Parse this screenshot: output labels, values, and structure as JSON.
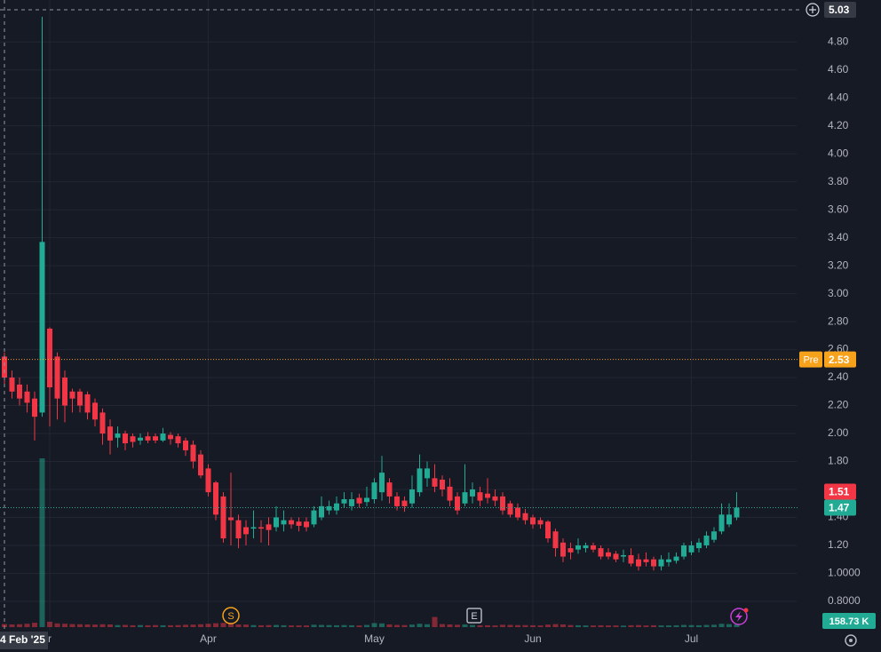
{
  "chart_data": {
    "type": "candlestick",
    "categories": [
      "4 Feb '25",
      null,
      null,
      null,
      null,
      null,
      "r",
      null,
      null,
      null,
      null,
      null,
      null,
      null,
      null,
      null,
      null,
      null,
      null,
      null,
      null,
      null,
      null,
      null,
      null,
      null,
      null,
      "Apr",
      null,
      null,
      null,
      null,
      null,
      null,
      null,
      null,
      null,
      null,
      null,
      null,
      null,
      null,
      null,
      null,
      null,
      null,
      null,
      null,
      null,
      "May",
      null,
      null,
      null,
      null,
      null,
      null,
      null,
      null,
      null,
      null,
      null,
      null,
      null,
      null,
      null,
      null,
      null,
      null,
      null,
      null,
      "Jun",
      null,
      null,
      null,
      null,
      null,
      null,
      null,
      null,
      null,
      null,
      null,
      null,
      null,
      null,
      null,
      null,
      null,
      null,
      null,
      null,
      "Jul",
      null,
      null,
      null,
      null,
      null,
      null
    ],
    "open": [
      2.55,
      2.4,
      2.35,
      2.3,
      2.25,
      2.15,
      2.75,
      2.55,
      2.4,
      2.3,
      2.3,
      2.28,
      2.22,
      2.15,
      2.05,
      1.97,
      2.0,
      1.98,
      1.95,
      1.98,
      1.98,
      1.95,
      1.99,
      1.98,
      1.95,
      1.92,
      1.85,
      1.75,
      1.65,
      1.55,
      1.4,
      1.38,
      1.33,
      1.32,
      1.33,
      1.35,
      1.33,
      1.35,
      1.38,
      1.37,
      1.37,
      1.35,
      1.4,
      1.45,
      1.45,
      1.5,
      1.48,
      1.54,
      1.51,
      1.53,
      1.58,
      1.65,
      1.55,
      1.52,
      1.5,
      1.58,
      1.68,
      1.68,
      1.67,
      1.62,
      1.55,
      1.5,
      1.55,
      1.58,
      1.57,
      1.55,
      1.55,
      1.5,
      1.47,
      1.43,
      1.4,
      1.38,
      1.37,
      1.3,
      1.22,
      1.18,
      1.17,
      1.18,
      1.2,
      1.18,
      1.15,
      1.14,
      1.12,
      1.13,
      1.1,
      1.1,
      1.1,
      1.05,
      1.08,
      1.09,
      1.12,
      1.15,
      1.18,
      1.2,
      1.24,
      1.3,
      1.35,
      1.4
    ],
    "high": [
      2.58,
      2.45,
      2.4,
      2.35,
      2.3,
      4.98,
      2.76,
      2.58,
      2.45,
      2.32,
      2.32,
      2.3,
      2.25,
      2.18,
      2.1,
      2.05,
      2.02,
      2.0,
      2.0,
      2.01,
      2.0,
      2.04,
      2.01,
      2.0,
      1.97,
      1.95,
      1.88,
      1.78,
      1.66,
      1.58,
      1.72,
      1.42,
      1.38,
      1.45,
      1.38,
      1.4,
      1.48,
      1.45,
      1.4,
      1.4,
      1.4,
      1.48,
      1.55,
      1.52,
      1.55,
      1.58,
      1.58,
      1.57,
      1.62,
      1.68,
      1.84,
      1.68,
      1.58,
      1.55,
      1.7,
      1.85,
      1.8,
      1.78,
      1.7,
      1.68,
      1.58,
      1.78,
      1.65,
      1.62,
      1.68,
      1.6,
      1.58,
      1.52,
      1.5,
      1.46,
      1.42,
      1.4,
      1.38,
      1.32,
      1.25,
      1.22,
      1.25,
      1.22,
      1.22,
      1.2,
      1.18,
      1.16,
      1.17,
      1.18,
      1.14,
      1.15,
      1.12,
      1.13,
      1.15,
      1.15,
      1.22,
      1.23,
      1.25,
      1.3,
      1.33,
      1.5,
      1.5,
      1.58
    ],
    "low": [
      2.35,
      2.25,
      2.2,
      2.15,
      1.95,
      2.12,
      2.05,
      2.1,
      2.08,
      2.15,
      2.15,
      2.1,
      2.05,
      1.92,
      1.85,
      1.9,
      1.88,
      1.9,
      1.92,
      1.93,
      1.93,
      1.94,
      1.92,
      1.9,
      1.84,
      1.75,
      1.68,
      1.55,
      1.38,
      1.22,
      1.2,
      1.18,
      1.2,
      1.25,
      1.22,
      1.2,
      1.3,
      1.3,
      1.32,
      1.3,
      1.3,
      1.33,
      1.38,
      1.42,
      1.42,
      1.47,
      1.45,
      1.47,
      1.48,
      1.5,
      1.52,
      1.5,
      1.45,
      1.44,
      1.47,
      1.55,
      1.62,
      1.58,
      1.55,
      1.48,
      1.42,
      1.48,
      1.5,
      1.48,
      1.5,
      1.48,
      1.42,
      1.4,
      1.38,
      1.35,
      1.32,
      1.32,
      1.22,
      1.12,
      1.08,
      1.1,
      1.14,
      1.15,
      1.15,
      1.1,
      1.1,
      1.08,
      1.08,
      1.05,
      1.02,
      1.05,
      1.02,
      1.02,
      1.05,
      1.07,
      1.1,
      1.13,
      1.15,
      1.18,
      1.22,
      1.28,
      1.33,
      1.38
    ],
    "close": [
      2.4,
      2.3,
      2.25,
      2.22,
      2.12,
      3.37,
      2.33,
      2.25,
      2.2,
      2.25,
      2.2,
      2.15,
      2.1,
      2.0,
      1.95,
      2.0,
      1.93,
      1.94,
      1.97,
      1.95,
      1.95,
      2.0,
      1.96,
      1.93,
      1.88,
      1.8,
      1.7,
      1.58,
      1.42,
      1.25,
      1.38,
      1.25,
      1.28,
      1.33,
      1.32,
      1.31,
      1.4,
      1.38,
      1.35,
      1.34,
      1.33,
      1.45,
      1.48,
      1.48,
      1.5,
      1.53,
      1.53,
      1.5,
      1.54,
      1.65,
      1.72,
      1.55,
      1.48,
      1.48,
      1.6,
      1.75,
      1.75,
      1.62,
      1.6,
      1.52,
      1.45,
      1.58,
      1.6,
      1.52,
      1.54,
      1.52,
      1.45,
      1.42,
      1.4,
      1.38,
      1.35,
      1.35,
      1.25,
      1.18,
      1.12,
      1.15,
      1.2,
      1.2,
      1.17,
      1.12,
      1.12,
      1.1,
      1.13,
      1.07,
      1.05,
      1.08,
      1.05,
      1.1,
      1.1,
      1.12,
      1.2,
      1.2,
      1.22,
      1.27,
      1.3,
      1.42,
      1.42,
      1.47
    ],
    "volume": [
      180,
      160,
      170,
      200,
      260,
      10000,
      320,
      220,
      200,
      180,
      170,
      160,
      150,
      170,
      160,
      120,
      130,
      110,
      120,
      110,
      120,
      110,
      110,
      120,
      140,
      150,
      170,
      200,
      230,
      250,
      190,
      160,
      150,
      120,
      110,
      120,
      130,
      110,
      100,
      100,
      100,
      140,
      130,
      120,
      110,
      120,
      110,
      100,
      130,
      240,
      220,
      160,
      130,
      120,
      150,
      200,
      170,
      600,
      180,
      160,
      140,
      160,
      130,
      110,
      110,
      100,
      140,
      130,
      120,
      120,
      110,
      100,
      150,
      180,
      160,
      120,
      110,
      100,
      100,
      110,
      100,
      100,
      90,
      110,
      120,
      100,
      110,
      100,
      100,
      110,
      130,
      120,
      110,
      130,
      140,
      200,
      180,
      158.73
    ],
    "vlim": [
      0,
      10000
    ],
    "last_volume_label": "158.73 K",
    "up_color": "#22ab94",
    "down_color": "#f23645",
    "ylim": [
      0.59,
      5.1
    ],
    "yticks": [
      {
        "value": 0.8,
        "label": "0.8000"
      },
      {
        "value": 1,
        "label": "1.0000"
      },
      {
        "value": 1.2,
        "label": "1.20"
      },
      {
        "value": 1.4,
        "label": "1.40"
      },
      {
        "value": 1.6,
        "label": "1.60"
      },
      {
        "value": 1.8,
        "label": "1.80"
      },
      {
        "value": 2,
        "label": "2.00"
      },
      {
        "value": 2.2,
        "label": "2.20"
      },
      {
        "value": 2.4,
        "label": "2.40"
      },
      {
        "value": 2.6,
        "label": "2.60"
      },
      {
        "value": 2.8,
        "label": "2.80"
      },
      {
        "value": 3,
        "label": "3.00"
      },
      {
        "value": 3.2,
        "label": "3.20"
      },
      {
        "value": 3.4,
        "label": "3.40"
      },
      {
        "value": 3.6,
        "label": "3.60"
      },
      {
        "value": 3.8,
        "label": "3.80"
      },
      {
        "value": 4,
        "label": "4.00"
      },
      {
        "value": 4.2,
        "label": "4.20"
      },
      {
        "value": 4.4,
        "label": "4.40"
      },
      {
        "value": 4.6,
        "label": "4.60"
      },
      {
        "value": 4.8,
        "label": "4.80"
      }
    ],
    "grid": true,
    "price_markers": [
      {
        "value": 5.03,
        "color": "#363a45",
        "line": "dashed"
      },
      {
        "value": 2.53,
        "tag": "Pre",
        "color": "#f7a21b",
        "line": "dotted"
      },
      {
        "value": 1.51,
        "color": "#f23645"
      },
      {
        "value": 1.47,
        "color": "#22ab94",
        "line": "dotted"
      }
    ],
    "events": [
      "S",
      "E"
    ]
  }
}
